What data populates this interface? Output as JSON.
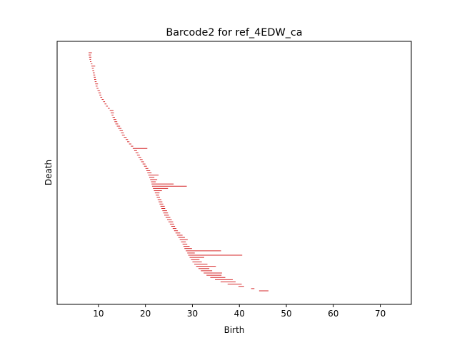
{
  "chart_data": {
    "type": "barcode",
    "title": "Barcode2 for ref_4EDW_ca",
    "xlabel": "Birth",
    "ylabel": "Death",
    "xlim": [
      1.2,
      76.6
    ],
    "xticks": [
      10,
      20,
      30,
      40,
      50,
      60,
      70
    ],
    "yticks": [],
    "grid": false,
    "legend": "none",
    "bar_color": "#d62728",
    "bars": [
      {
        "start": 7.9,
        "end": 8.6
      },
      {
        "start": 7.9,
        "end": 8.4
      },
      {
        "start": 8.0,
        "end": 8.5
      },
      {
        "start": 8.1,
        "end": 8.4
      },
      {
        "start": 8.2,
        "end": 8.5
      },
      {
        "start": 8.4,
        "end": 8.7
      },
      {
        "start": 8.5,
        "end": 9.3
      },
      {
        "start": 8.6,
        "end": 9.0
      },
      {
        "start": 8.7,
        "end": 9.1
      },
      {
        "start": 8.8,
        "end": 9.2
      },
      {
        "start": 8.9,
        "end": 9.3
      },
      {
        "start": 9.0,
        "end": 9.4
      },
      {
        "start": 9.1,
        "end": 9.5
      },
      {
        "start": 9.2,
        "end": 9.6
      },
      {
        "start": 9.3,
        "end": 9.9
      },
      {
        "start": 9.4,
        "end": 9.8
      },
      {
        "start": 9.6,
        "end": 10.0
      },
      {
        "start": 9.8,
        "end": 10.3
      },
      {
        "start": 10.0,
        "end": 10.5
      },
      {
        "start": 10.2,
        "end": 10.6
      },
      {
        "start": 10.4,
        "end": 10.8
      },
      {
        "start": 10.7,
        "end": 11.1
      },
      {
        "start": 11.0,
        "end": 11.4
      },
      {
        "start": 11.3,
        "end": 11.7
      },
      {
        "start": 11.6,
        "end": 12.0
      },
      {
        "start": 12.0,
        "end": 12.4
      },
      {
        "start": 12.4,
        "end": 13.2
      },
      {
        "start": 12.6,
        "end": 13.3
      },
      {
        "start": 12.8,
        "end": 13.2
      },
      {
        "start": 13.0,
        "end": 13.5
      },
      {
        "start": 13.2,
        "end": 13.8
      },
      {
        "start": 13.4,
        "end": 14.0
      },
      {
        "start": 13.6,
        "end": 14.2
      },
      {
        "start": 13.9,
        "end": 14.6
      },
      {
        "start": 14.2,
        "end": 14.9
      },
      {
        "start": 14.5,
        "end": 15.2
      },
      {
        "start": 14.8,
        "end": 15.4
      },
      {
        "start": 15.0,
        "end": 15.6
      },
      {
        "start": 15.4,
        "end": 16.0
      },
      {
        "start": 15.8,
        "end": 16.3
      },
      {
        "start": 16.1,
        "end": 16.6
      },
      {
        "start": 16.5,
        "end": 17.0
      },
      {
        "start": 16.9,
        "end": 17.4
      },
      {
        "start": 17.3,
        "end": 20.4
      },
      {
        "start": 17.6,
        "end": 18.2
      },
      {
        "start": 17.9,
        "end": 18.5
      },
      {
        "start": 18.2,
        "end": 18.8
      },
      {
        "start": 18.5,
        "end": 19.1
      },
      {
        "start": 18.8,
        "end": 19.4
      },
      {
        "start": 19.1,
        "end": 19.7
      },
      {
        "start": 19.4,
        "end": 20.0
      },
      {
        "start": 19.7,
        "end": 20.3
      },
      {
        "start": 20.0,
        "end": 20.6
      },
      {
        "start": 20.2,
        "end": 21.0
      },
      {
        "start": 20.4,
        "end": 21.3
      },
      {
        "start": 20.6,
        "end": 22.8
      },
      {
        "start": 20.8,
        "end": 21.9
      },
      {
        "start": 21.0,
        "end": 22.5
      },
      {
        "start": 21.2,
        "end": 22.2
      },
      {
        "start": 21.3,
        "end": 26.0
      },
      {
        "start": 21.4,
        "end": 28.8
      },
      {
        "start": 21.6,
        "end": 24.8
      },
      {
        "start": 21.8,
        "end": 23.5
      },
      {
        "start": 22.0,
        "end": 23.0
      },
      {
        "start": 22.2,
        "end": 22.9
      },
      {
        "start": 22.4,
        "end": 23.1
      },
      {
        "start": 22.6,
        "end": 23.4
      },
      {
        "start": 22.8,
        "end": 23.6
      },
      {
        "start": 23.0,
        "end": 23.8
      },
      {
        "start": 23.2,
        "end": 24.1
      },
      {
        "start": 23.4,
        "end": 24.2
      },
      {
        "start": 23.6,
        "end": 24.6
      },
      {
        "start": 23.8,
        "end": 24.8
      },
      {
        "start": 24.0,
        "end": 25.0
      },
      {
        "start": 24.3,
        "end": 25.3
      },
      {
        "start": 24.6,
        "end": 25.6
      },
      {
        "start": 24.9,
        "end": 25.9
      },
      {
        "start": 25.2,
        "end": 26.1
      },
      {
        "start": 25.5,
        "end": 26.3
      },
      {
        "start": 25.8,
        "end": 26.6
      },
      {
        "start": 26.1,
        "end": 26.9
      },
      {
        "start": 26.4,
        "end": 27.4
      },
      {
        "start": 26.7,
        "end": 27.9
      },
      {
        "start": 27.0,
        "end": 28.4
      },
      {
        "start": 27.3,
        "end": 29.0
      },
      {
        "start": 27.6,
        "end": 28.6
      },
      {
        "start": 27.9,
        "end": 28.9
      },
      {
        "start": 28.1,
        "end": 29.4
      },
      {
        "start": 28.3,
        "end": 29.9
      },
      {
        "start": 28.6,
        "end": 36.1
      },
      {
        "start": 28.9,
        "end": 30.5
      },
      {
        "start": 29.1,
        "end": 40.6
      },
      {
        "start": 29.4,
        "end": 32.5
      },
      {
        "start": 29.7,
        "end": 31.5
      },
      {
        "start": 30.0,
        "end": 32.0
      },
      {
        "start": 30.4,
        "end": 33.2
      },
      {
        "start": 30.8,
        "end": 35.0
      },
      {
        "start": 31.3,
        "end": 33.6
      },
      {
        "start": 31.8,
        "end": 34.2
      },
      {
        "start": 32.4,
        "end": 36.3
      },
      {
        "start": 33.0,
        "end": 36.2
      },
      {
        "start": 33.8,
        "end": 37.0
      },
      {
        "start": 34.8,
        "end": 38.6
      },
      {
        "start": 36.0,
        "end": 39.2
      },
      {
        "start": 37.5,
        "end": 40.5
      },
      {
        "start": 39.8,
        "end": 41.0
      },
      {
        "start": 42.5,
        "end": 43.2
      },
      {
        "start": 44.2,
        "end": 46.2
      }
    ]
  }
}
